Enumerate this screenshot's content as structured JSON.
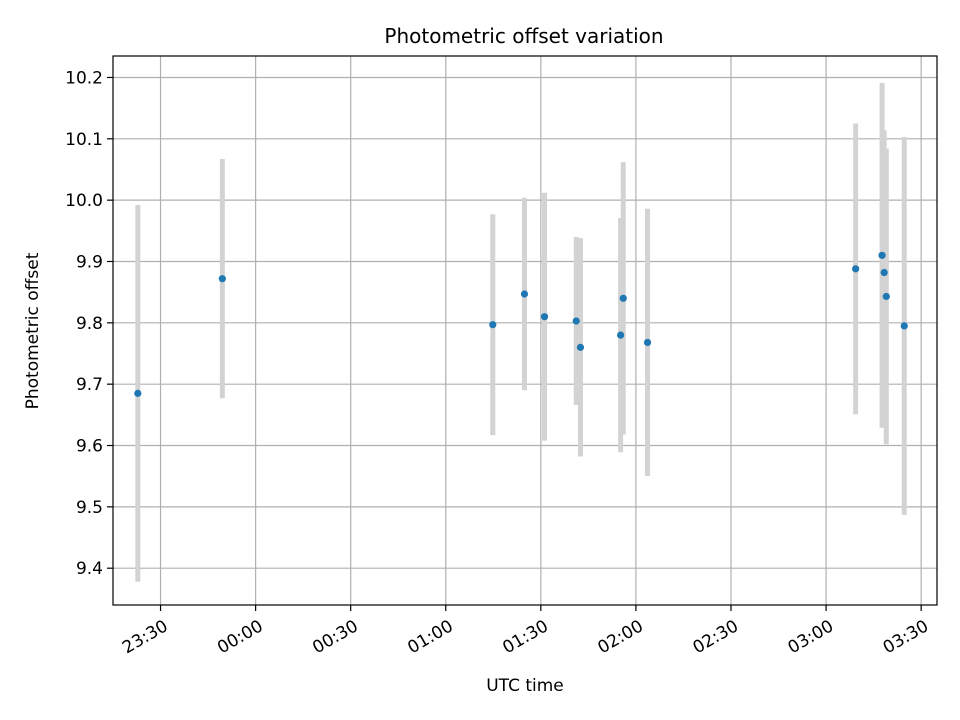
{
  "chart_data": {
    "type": "scatter",
    "title": "Photometric offset variation",
    "xlabel": "UTC time",
    "ylabel": "Photometric offset",
    "x_unit": "UTC time (HH:MM)",
    "x_start_date_note": "times span midnight; entries after 00:00 are next day",
    "xlim": [
      "23:15",
      "03:35"
    ],
    "ylim": [
      9.34,
      10.235
    ],
    "grid": true,
    "x_ticks": [
      "23:30",
      "00:00",
      "00:30",
      "01:00",
      "01:30",
      "02:00",
      "02:30",
      "03:00",
      "03:30"
    ],
    "y_ticks": [
      "9.4",
      "9.5",
      "9.6",
      "9.7",
      "9.8",
      "9.9",
      "10.0",
      "10.1",
      "10.2"
    ],
    "marker_color": "#1f77b4",
    "errorbar_color": "#d3d3d3",
    "points": [
      {
        "x": "23:22:50",
        "y": 9.685,
        "ylow": 9.378,
        "yhigh": 9.992
      },
      {
        "x": "23:49:30",
        "y": 9.872,
        "ylow": 9.677,
        "yhigh": 10.067
      },
      {
        "x": "01:14:50",
        "y": 9.797,
        "ylow": 9.617,
        "yhigh": 9.977
      },
      {
        "x": "01:24:50",
        "y": 9.847,
        "ylow": 9.69,
        "yhigh": 10.004
      },
      {
        "x": "01:31:10",
        "y": 9.81,
        "ylow": 9.608,
        "yhigh": 10.012
      },
      {
        "x": "01:41:10",
        "y": 9.803,
        "ylow": 9.666,
        "yhigh": 9.94
      },
      {
        "x": "01:42:30",
        "y": 9.76,
        "ylow": 9.582,
        "yhigh": 9.938
      },
      {
        "x": "01:55:10",
        "y": 9.78,
        "ylow": 9.589,
        "yhigh": 9.971
      },
      {
        "x": "01:56:00",
        "y": 9.84,
        "ylow": 9.618,
        "yhigh": 10.062
      },
      {
        "x": "02:03:40",
        "y": 9.768,
        "ylow": 9.55,
        "yhigh": 9.986
      },
      {
        "x": "03:09:20",
        "y": 9.888,
        "ylow": 9.651,
        "yhigh": 10.125
      },
      {
        "x": "03:17:40",
        "y": 9.91,
        "ylow": 9.629,
        "yhigh": 10.191
      },
      {
        "x": "03:18:20",
        "y": 9.882,
        "ylow": 9.65,
        "yhigh": 10.114
      },
      {
        "x": "03:19:00",
        "y": 9.843,
        "ylow": 9.602,
        "yhigh": 10.084
      },
      {
        "x": "03:24:40",
        "y": 9.795,
        "ylow": 9.487,
        "yhigh": 10.103
      }
    ]
  }
}
